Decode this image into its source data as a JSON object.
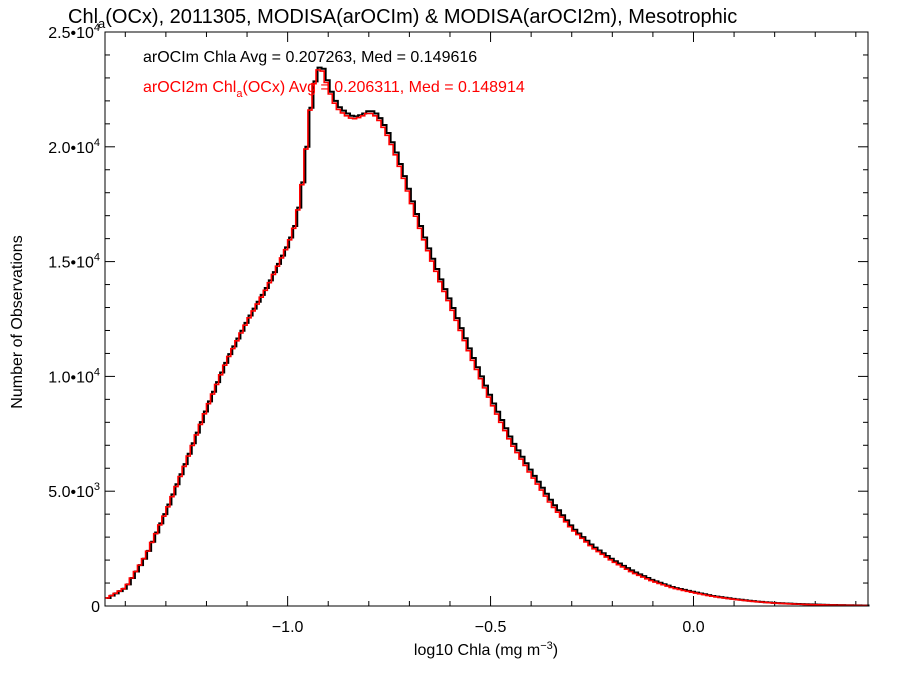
{
  "chart_data": {
    "type": "line",
    "title": {
      "main": "Chl",
      "sub": "a",
      "rest": "(OCx), 2011305, MODISA(arOCIm) & MODISA(arOCI2m), Mesotrophic"
    },
    "xlabel": {
      "text": "log10 Chla (mg m",
      "sup": "−3",
      "close": ")"
    },
    "ylabel": "Number of Observations",
    "xlim": [
      -1.45,
      0.43
    ],
    "ylim": [
      0,
      25000
    ],
    "x_ticks": [
      {
        "value": -1.0,
        "label": "−1.0"
      },
      {
        "value": -0.5,
        "label": "−0.5"
      },
      {
        "value": 0.0,
        "label": "0.0"
      }
    ],
    "y_ticks": [
      {
        "value": 0,
        "mant": "0",
        "exp": ""
      },
      {
        "value": 5000,
        "mant": "5.0•10",
        "exp": "3"
      },
      {
        "value": 10000,
        "mant": "1.0•10",
        "exp": "4"
      },
      {
        "value": 15000,
        "mant": "1.5•10",
        "exp": "4"
      },
      {
        "value": 20000,
        "mant": "2.0•10",
        "exp": "4"
      },
      {
        "value": 25000,
        "mant": "2.5•10",
        "exp": "4"
      }
    ],
    "step_width": 0.01,
    "legend_placement": "top-left",
    "legend": [
      {
        "name": "arOCIm Chla Avg = 0.207263, Med = 0.149616",
        "name_main": "arOCIm Chla",
        "name_sub": "",
        "name_rest": " Avg = 0.207263, Med = 0.149616",
        "color": "#000000"
      },
      {
        "name": "arOCI2m Chla(OCx) Avg = 0.206311, Med = 0.148914",
        "name_main": "arOCI2m Chl",
        "name_sub": "a",
        "name_rest": "(OCx) Avg = 0.206311, Med = 0.148914",
        "color": "#ff0000"
      }
    ],
    "series": [
      {
        "name": "arOCIm",
        "color": "#000000",
        "points": [
          [
            -1.45,
            300
          ],
          [
            -1.4,
            800
          ],
          [
            -1.35,
            2200
          ],
          [
            -1.3,
            4200
          ],
          [
            -1.25,
            6400
          ],
          [
            -1.2,
            8700
          ],
          [
            -1.15,
            10800
          ],
          [
            -1.1,
            12500
          ],
          [
            -1.05,
            14000
          ],
          [
            -1.0,
            15800
          ],
          [
            -0.98,
            16800
          ],
          [
            -0.96,
            19000
          ],
          [
            -0.95,
            21000
          ],
          [
            -0.94,
            22400
          ],
          [
            -0.93,
            23300
          ],
          [
            -0.92,
            23600
          ],
          [
            -0.91,
            23200
          ],
          [
            -0.9,
            22600
          ],
          [
            -0.88,
            21800
          ],
          [
            -0.86,
            21500
          ],
          [
            -0.84,
            21300
          ],
          [
            -0.82,
            21400
          ],
          [
            -0.8,
            21600
          ],
          [
            -0.78,
            21400
          ],
          [
            -0.76,
            20800
          ],
          [
            -0.74,
            20000
          ],
          [
            -0.72,
            19000
          ],
          [
            -0.7,
            17900
          ],
          [
            -0.68,
            16800
          ],
          [
            -0.66,
            15800
          ],
          [
            -0.64,
            14900
          ],
          [
            -0.62,
            14000
          ],
          [
            -0.6,
            13200
          ],
          [
            -0.55,
            11000
          ],
          [
            -0.5,
            9000
          ],
          [
            -0.45,
            7200
          ],
          [
            -0.4,
            5800
          ],
          [
            -0.35,
            4500
          ],
          [
            -0.3,
            3400
          ],
          [
            -0.25,
            2600
          ],
          [
            -0.2,
            2000
          ],
          [
            -0.15,
            1500
          ],
          [
            -0.1,
            1100
          ],
          [
            -0.05,
            800
          ],
          [
            0.0,
            600
          ],
          [
            0.05,
            420
          ],
          [
            0.1,
            300
          ],
          [
            0.15,
            200
          ],
          [
            0.2,
            130
          ],
          [
            0.25,
            90
          ],
          [
            0.3,
            60
          ],
          [
            0.35,
            40
          ],
          [
            0.43,
            20
          ]
        ]
      },
      {
        "name": "arOCI2m",
        "color": "#ff0000",
        "points": [
          [
            -1.45,
            300
          ],
          [
            -1.4,
            800
          ],
          [
            -1.35,
            2200
          ],
          [
            -1.3,
            4100
          ],
          [
            -1.25,
            6300
          ],
          [
            -1.2,
            8600
          ],
          [
            -1.15,
            10700
          ],
          [
            -1.1,
            12400
          ],
          [
            -1.05,
            13900
          ],
          [
            -1.0,
            15700
          ],
          [
            -0.98,
            16700
          ],
          [
            -0.96,
            18900
          ],
          [
            -0.95,
            20900
          ],
          [
            -0.94,
            22300
          ],
          [
            -0.93,
            23200
          ],
          [
            -0.92,
            23500
          ],
          [
            -0.91,
            23100
          ],
          [
            -0.9,
            22500
          ],
          [
            -0.88,
            21700
          ],
          [
            -0.86,
            21400
          ],
          [
            -0.84,
            21200
          ],
          [
            -0.82,
            21300
          ],
          [
            -0.8,
            21500
          ],
          [
            -0.78,
            21300
          ],
          [
            -0.76,
            20700
          ],
          [
            -0.74,
            19900
          ],
          [
            -0.72,
            18900
          ],
          [
            -0.7,
            17800
          ],
          [
            -0.68,
            16700
          ],
          [
            -0.66,
            15700
          ],
          [
            -0.64,
            14800
          ],
          [
            -0.62,
            13900
          ],
          [
            -0.6,
            13100
          ],
          [
            -0.55,
            10900
          ],
          [
            -0.5,
            8900
          ],
          [
            -0.45,
            7100
          ],
          [
            -0.4,
            5700
          ],
          [
            -0.35,
            4400
          ],
          [
            -0.3,
            3350
          ],
          [
            -0.25,
            2550
          ],
          [
            -0.2,
            1950
          ],
          [
            -0.15,
            1450
          ],
          [
            -0.1,
            1070
          ],
          [
            -0.05,
            780
          ],
          [
            0.0,
            580
          ],
          [
            0.05,
            410
          ],
          [
            0.1,
            290
          ],
          [
            0.15,
            195
          ],
          [
            0.2,
            125
          ],
          [
            0.25,
            85
          ],
          [
            0.3,
            55
          ],
          [
            0.35,
            38
          ],
          [
            0.43,
            18
          ]
        ]
      }
    ]
  }
}
